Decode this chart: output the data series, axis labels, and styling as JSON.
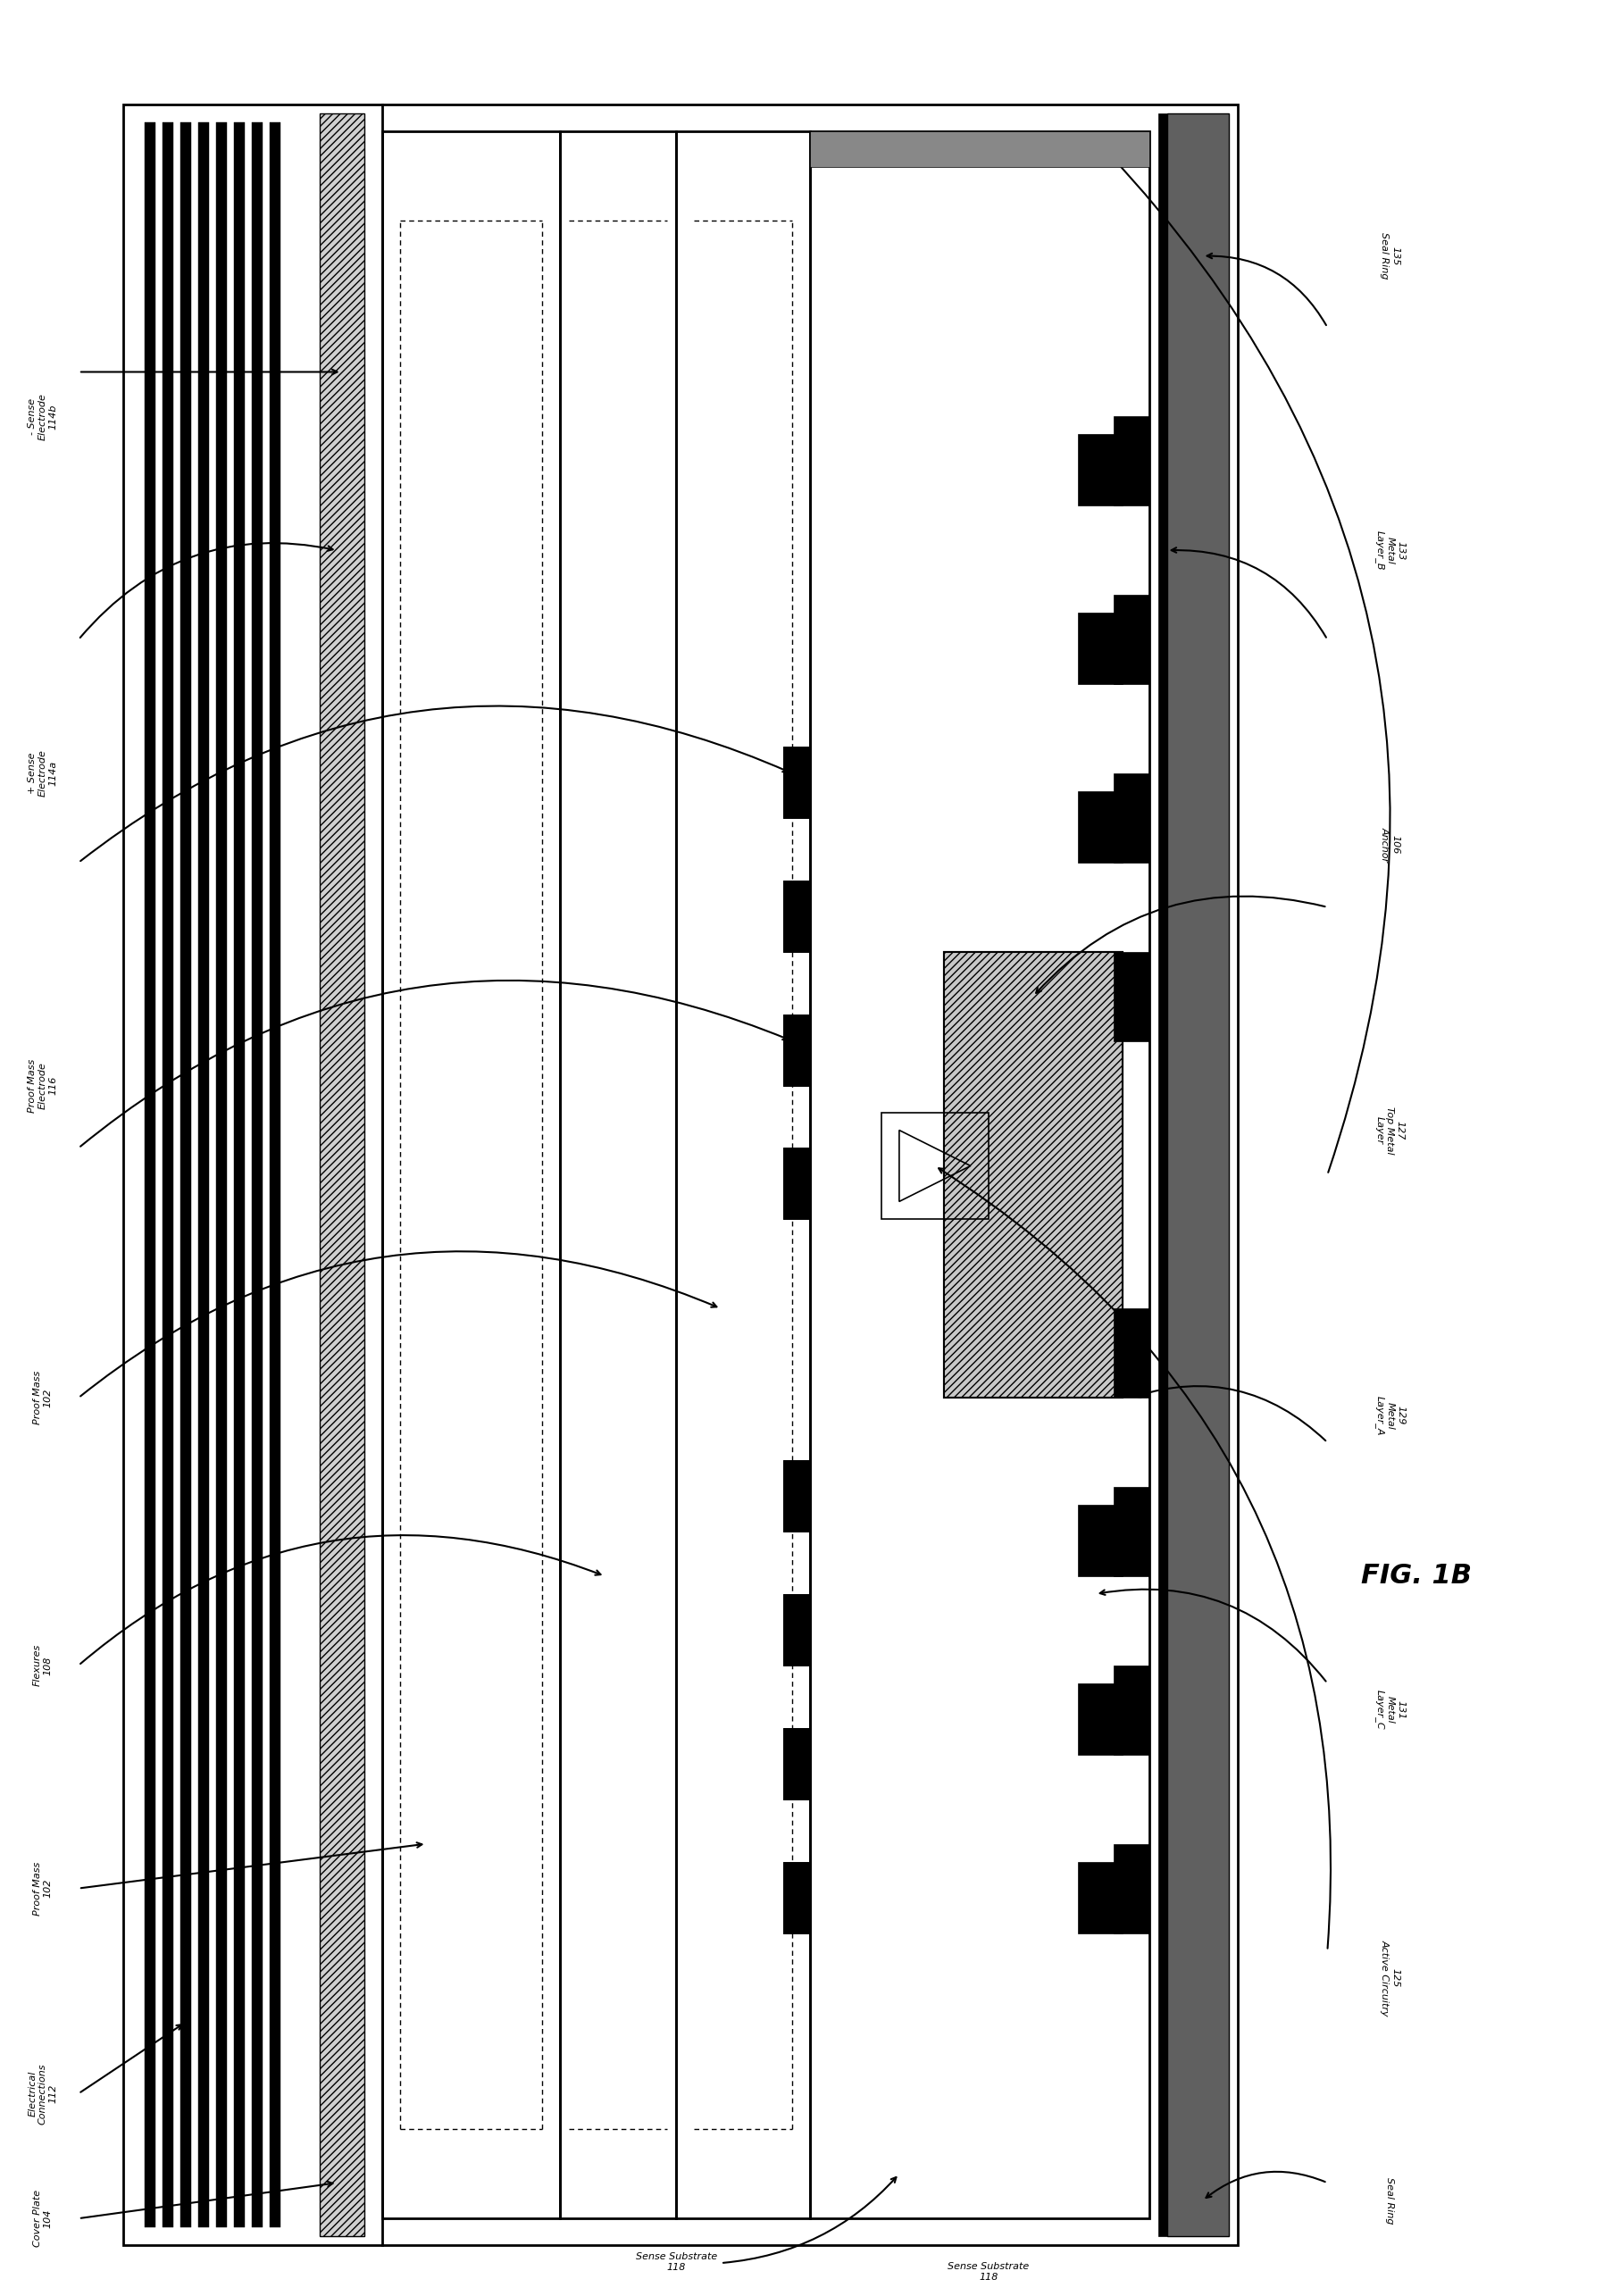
{
  "title": "FIG. 1B",
  "background_color": "#ffffff",
  "line_color": "#000000",
  "fig_width": 18.14,
  "fig_height": 25.71,
  "labels": {
    "sense_electrode_neg": "- Sense\nElectrode\n114b",
    "sense_electrode_pos": "+ Sense\nElectrode\n114a",
    "proof_mass_electrode": "Proof Mass\nElectrode\n116",
    "proof_mass_1": "Proof Mass\n102",
    "flexures": "Flexures\n108",
    "proof_mass_2": "Proof Mass\n102",
    "electrical_connections": "Electrical\nConnections\n112",
    "cover_plate": "Cover Plate\n104",
    "sense_substrate": "Sense Substrate\n118",
    "active_circuitry": "125\nActive Circuitry",
    "seal_ring_left": "Seal Ring",
    "seal_ring_right": "135\nSeal Ring",
    "metal_layer_b": "133\nMetal\nLayer_B",
    "anchor": "106\nAnchor",
    "top_metal_layer": "127\nTop Metal\nLayer",
    "metal_layer_a": "129\nMetal\nLayer_A",
    "metal_layer_c": "131\nMetal\nLayer_C"
  }
}
